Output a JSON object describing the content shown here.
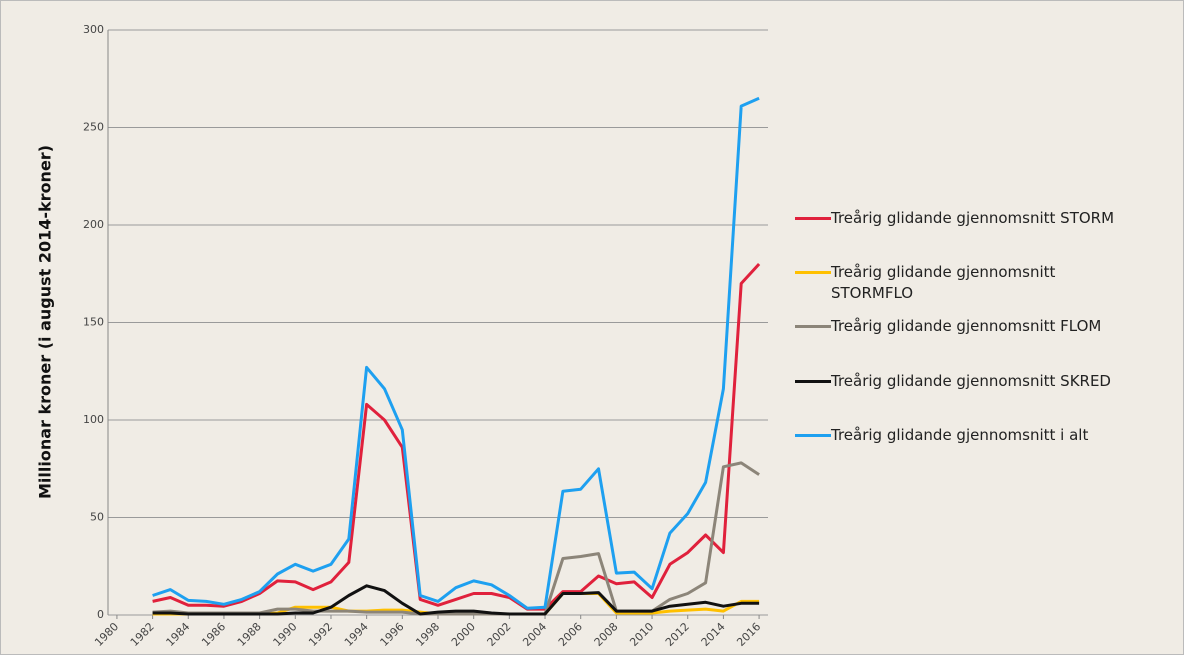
{
  "chart_data": {
    "type": "line",
    "y_label": "Millionar kroner (i august 2014-kroner)",
    "x": [
      1982,
      1983,
      1984,
      1985,
      1986,
      1987,
      1988,
      1989,
      1990,
      1991,
      1992,
      1993,
      1994,
      1995,
      1996,
      1997,
      1998,
      1999,
      2000,
      2001,
      2002,
      2003,
      2004,
      2005,
      2006,
      2007,
      2008,
      2009,
      2010,
      2011,
      2012,
      2013,
      2014,
      2015,
      2016
    ],
    "xlim": [
      1979.5,
      2016.5
    ],
    "xticks": [
      1980,
      1982,
      1984,
      1986,
      1988,
      1990,
      1992,
      1994,
      1996,
      1998,
      2000,
      2002,
      2004,
      2006,
      2008,
      2010,
      2012,
      2014,
      2016
    ],
    "ylim": [
      0,
      300
    ],
    "yticks": [
      0,
      50,
      100,
      150,
      200,
      250,
      300
    ],
    "grid": true,
    "legend": "right",
    "series": [
      {
        "name": "Treårig glidande gjennomsnitt STORM",
        "color": "#e0213c",
        "values": [
          7,
          9,
          5,
          5,
          4.5,
          7,
          11,
          17.5,
          17,
          13,
          17,
          27,
          108,
          100,
          86,
          8,
          5,
          8,
          11,
          11,
          9,
          3,
          3,
          12,
          12,
          20,
          16,
          17,
          9,
          26,
          32,
          41,
          32,
          170,
          180
        ]
      },
      {
        "name": "Treårig glidande gjennomsnitt STORMFLO",
        "color": "#ffc000",
        "values": [
          0.5,
          0.5,
          0.5,
          0.5,
          0.5,
          0.5,
          0.5,
          1,
          4,
          4,
          4,
          2,
          2,
          2.5,
          2.5,
          1.5,
          0.5,
          0.5,
          0.5,
          0.5,
          0.5,
          0.5,
          0.5,
          11,
          11,
          11,
          1,
          1,
          1,
          2,
          2.5,
          3,
          2,
          7,
          7
        ]
      },
      {
        "name": "Treårig glidande gjennomsnitt FLOM",
        "color": "#8c8579",
        "values": [
          1.5,
          2,
          1,
          1,
          1,
          1,
          1,
          3,
          3,
          2,
          2,
          2,
          1.5,
          1.5,
          1.5,
          0.5,
          0.5,
          0.5,
          0.5,
          0.5,
          0.5,
          0.5,
          0.5,
          29,
          30,
          31.5,
          2,
          2,
          2,
          8,
          11,
          16.5,
          76,
          78,
          72
        ]
      },
      {
        "name": "Treårig glidande gjennomsnitt SKRED",
        "color": "#111111",
        "values": [
          1,
          1,
          0.5,
          0.5,
          0.5,
          0.5,
          0.5,
          0.5,
          1,
          1,
          4,
          10,
          15,
          12.5,
          6,
          0.5,
          1.5,
          2,
          2,
          1,
          0.5,
          0.5,
          0.5,
          11,
          11,
          11.5,
          2,
          2,
          2,
          4.5,
          5.5,
          6.5,
          4.5,
          6,
          6
        ]
      },
      {
        "name": "Treårig glidande gjennomsnitt i alt",
        "color": "#1ea0f0",
        "values": [
          10,
          13,
          7.5,
          7,
          5.5,
          8,
          12,
          21,
          26,
          22.5,
          26,
          39,
          127,
          116,
          95,
          10,
          7,
          14,
          17.5,
          15.5,
          10,
          3.5,
          4,
          63.5,
          64.5,
          75,
          21.5,
          22,
          13.5,
          42,
          52,
          68,
          116,
          261,
          265
        ]
      }
    ]
  }
}
